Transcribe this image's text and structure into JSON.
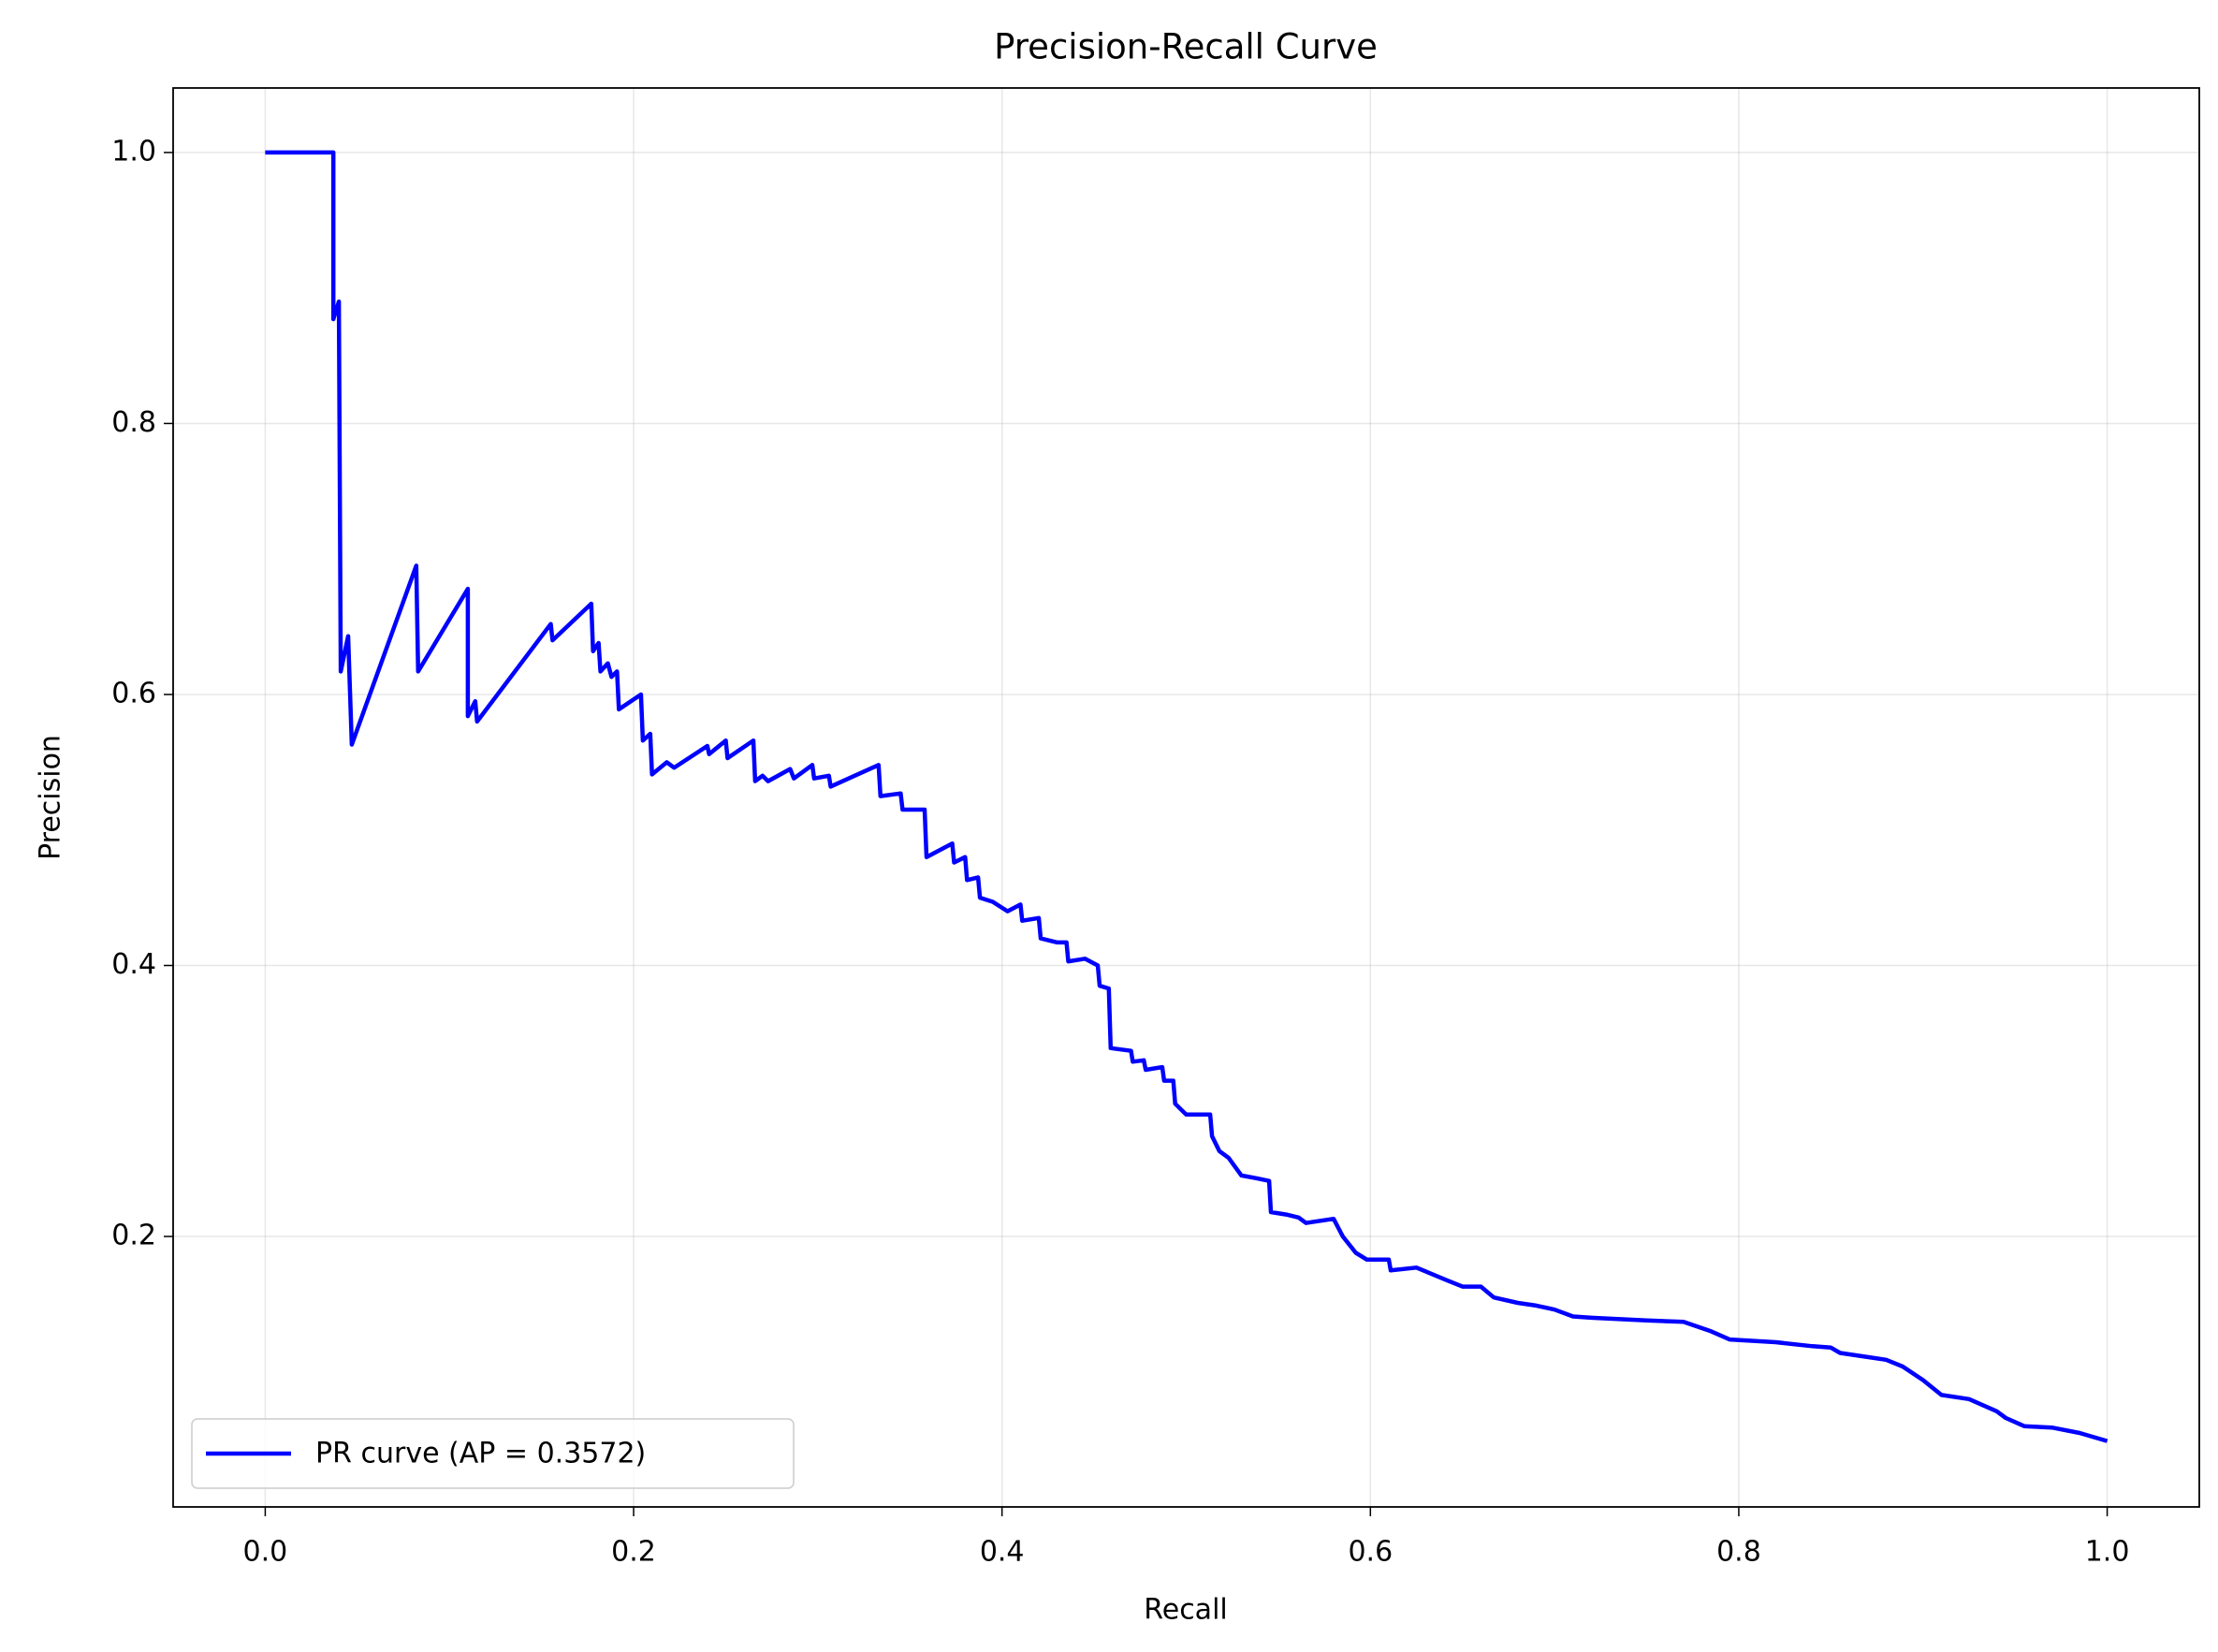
{
  "chart_data": {
    "type": "line",
    "title": "Precision-Recall Curve",
    "x_label": "Recall",
    "y_label": "Precision",
    "xlim": [
      -0.05,
      1.05
    ],
    "ylim": [
      0.0004,
      1.0476
    ],
    "xticks": [
      {
        "value": 0,
        "label": "0.0"
      },
      0.2,
      0.4,
      0.6,
      0.8,
      {
        "value": 1,
        "label": "1.0"
      }
    ],
    "yticks": [
      0.2,
      0.4,
      0.6,
      0.8,
      {
        "value": 1,
        "label": "1.0"
      }
    ],
    "grid": true,
    "legend": "lower left",
    "series": [
      {
        "name": "PR curve (AP = 0.3572)",
        "color": "#0000ff",
        "x": [
          0,
          0.037,
          0.037,
          0.04,
          0.041,
          0.045,
          0.047,
          0.082,
          0.083,
          0.11,
          0.11,
          0.114,
          0.115,
          0.155,
          0.156,
          0.177,
          0.178,
          0.181,
          0.182,
          0.186,
          0.188,
          0.191,
          0.192,
          0.204,
          0.205,
          0.209,
          0.21,
          0.218,
          0.222,
          0.24,
          0.241,
          0.25,
          0.251,
          0.265,
          0.266,
          0.27,
          0.273,
          0.285,
          0.287,
          0.297,
          0.298,
          0.306,
          0.307,
          0.32,
          0.333,
          0.334,
          0.345,
          0.346,
          0.358,
          0.359,
          0.373,
          0.374,
          0.38,
          0.381,
          0.387,
          0.388,
          0.395,
          0.403,
          0.41,
          0.411,
          0.42,
          0.421,
          0.43,
          0.435,
          0.436,
          0.445,
          0.452,
          0.453,
          0.458,
          0.459,
          0.47,
          0.471,
          0.477,
          0.478,
          0.487,
          0.488,
          0.493,
          0.494,
          0.5,
          0.513,
          0.514,
          0.518,
          0.523,
          0.53,
          0.538,
          0.545,
          0.546,
          0.555,
          0.561,
          0.565,
          0.58,
          0.585,
          0.592,
          0.598,
          0.61,
          0.611,
          0.625,
          0.641,
          0.65,
          0.66,
          0.667,
          0.68,
          0.69,
          0.7,
          0.71,
          0.72,
          0.75,
          0.77,
          0.785,
          0.795,
          0.82,
          0.84,
          0.85,
          0.855,
          0.87,
          0.88,
          0.889,
          0.9,
          0.91,
          0.925,
          0.94,
          0.945,
          0.955,
          0.97,
          0.985,
          1.0
        ],
        "values": [
          1.0,
          1.0,
          0.877,
          0.89,
          0.617,
          0.643,
          0.563,
          0.695,
          0.617,
          0.678,
          0.584,
          0.595,
          0.58,
          0.652,
          0.64,
          0.667,
          0.632,
          0.638,
          0.617,
          0.623,
          0.613,
          0.617,
          0.589,
          0.6,
          0.566,
          0.571,
          0.541,
          0.55,
          0.546,
          0.562,
          0.556,
          0.566,
          0.553,
          0.566,
          0.536,
          0.54,
          0.536,
          0.545,
          0.538,
          0.548,
          0.538,
          0.54,
          0.532,
          0.54,
          0.548,
          0.525,
          0.527,
          0.515,
          0.515,
          0.48,
          0.49,
          0.476,
          0.48,
          0.463,
          0.465,
          0.45,
          0.447,
          0.44,
          0.445,
          0.433,
          0.435,
          0.42,
          0.417,
          0.417,
          0.403,
          0.405,
          0.4,
          0.385,
          0.383,
          0.339,
          0.337,
          0.329,
          0.33,
          0.323,
          0.325,
          0.315,
          0.315,
          0.298,
          0.29,
          0.29,
          0.274,
          0.263,
          0.258,
          0.245,
          0.243,
          0.241,
          0.218,
          0.216,
          0.214,
          0.21,
          0.213,
          0.2,
          0.188,
          0.183,
          0.183,
          0.175,
          0.177,
          0.168,
          0.163,
          0.163,
          0.155,
          0.151,
          0.149,
          0.146,
          0.141,
          0.14,
          0.138,
          0.137,
          0.13,
          0.124,
          0.122,
          0.119,
          0.118,
          0.114,
          0.111,
          0.109,
          0.104,
          0.094,
          0.083,
          0.08,
          0.071,
          0.066,
          0.06,
          0.059,
          0.055,
          0.049
        ]
      }
    ]
  }
}
